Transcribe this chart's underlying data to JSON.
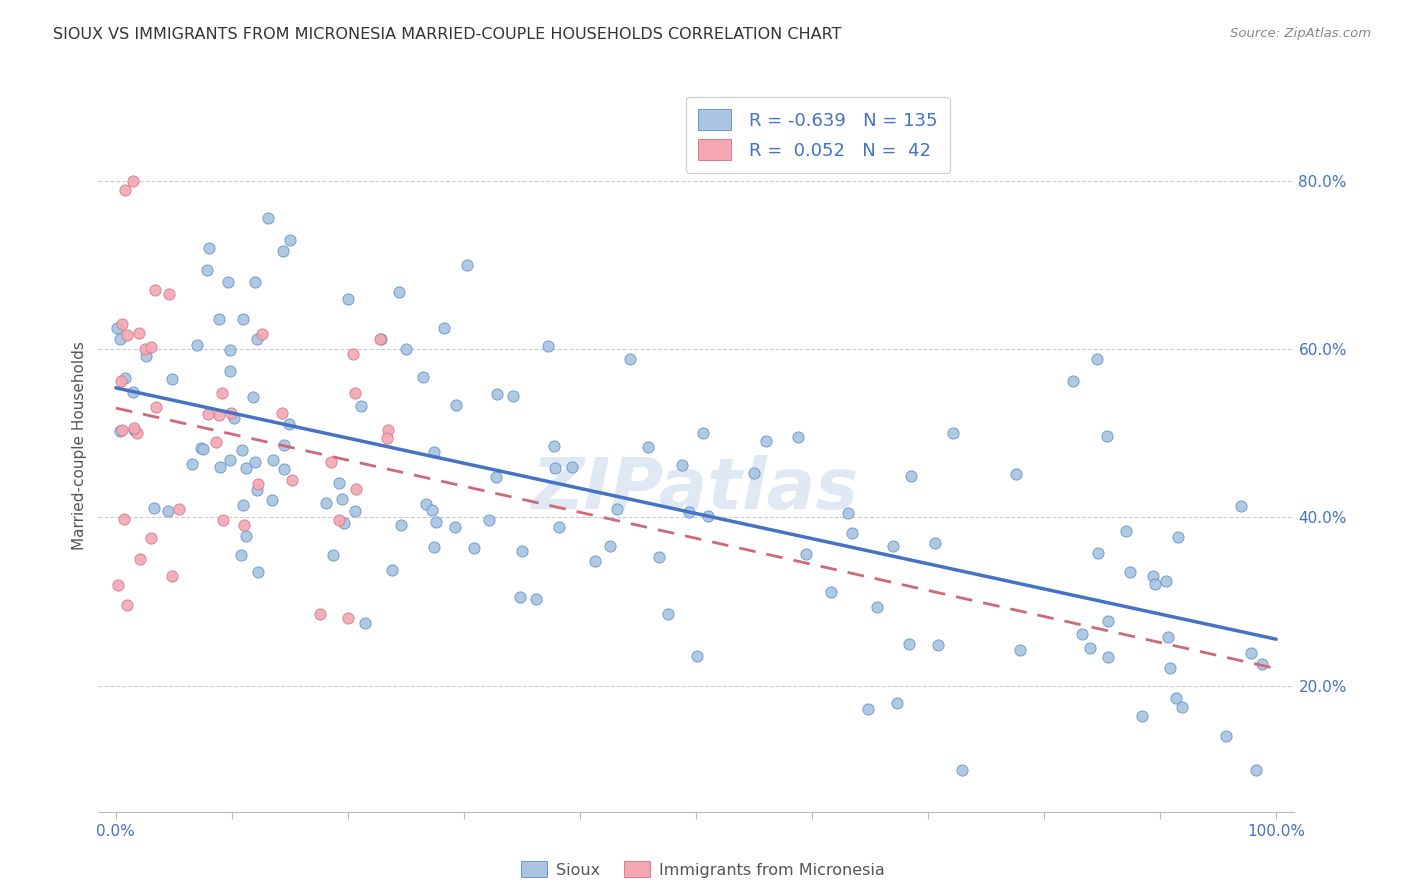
{
  "title": "SIOUX VS IMMIGRANTS FROM MICRONESIA MARRIED-COUPLE HOUSEHOLDS CORRELATION CHART",
  "source": "Source: ZipAtlas.com",
  "ylabel": "Married-couple Households",
  "sioux_color": "#a8c4e0",
  "sioux_edge_color": "#5b8cc8",
  "micronesia_color": "#f4a7b3",
  "micronesia_edge_color": "#d07080",
  "sioux_line_color": "#4472c4",
  "micronesia_line_color": "#d06878",
  "background_color": "#ffffff",
  "grid_color": "#cccccc",
  "text_color": "#555555",
  "tick_color": "#4472c4",
  "title_color": "#333333",
  "watermark_color": "#c8d8ea",
  "legend_text_color": "#4472c4"
}
